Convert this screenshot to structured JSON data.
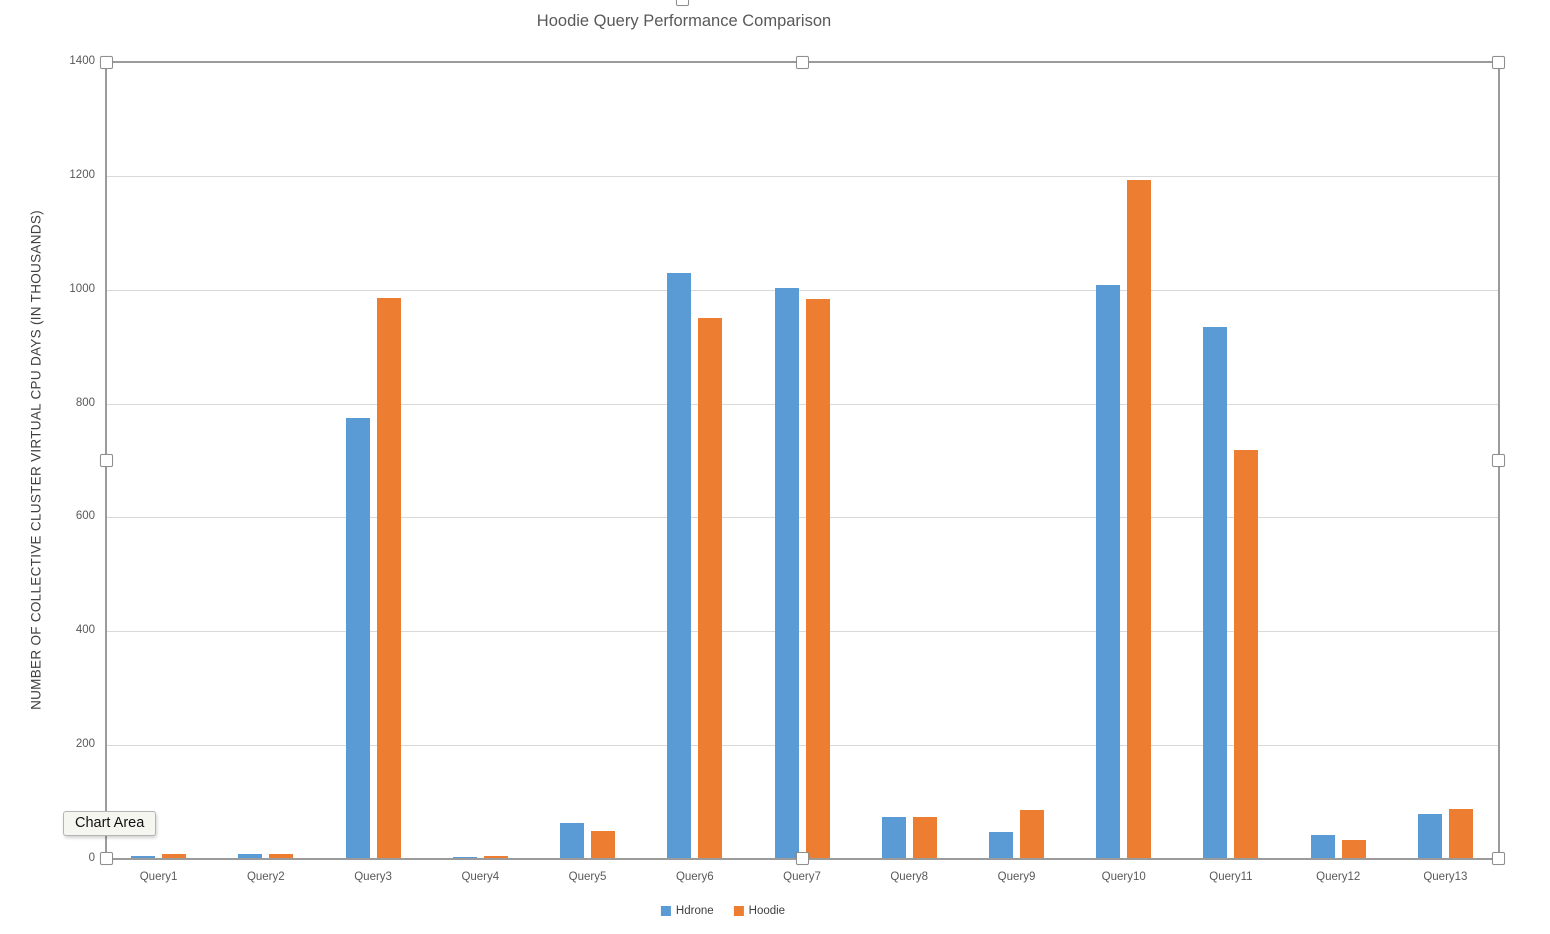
{
  "window": {
    "tooltip": "Chart Area"
  },
  "chart_data": {
    "type": "bar",
    "title": "Hoodie Query Performance Comparison",
    "xlabel": "",
    "ylabel": "NUMBER OF COLLECTIVE CLUSTER VIRTUAL CPU DAYS (IN THOUSANDS)",
    "categories": [
      "Query1",
      "Query2",
      "Query3",
      "Query4",
      "Query5",
      "Query6",
      "Query7",
      "Query8",
      "Query9",
      "Query10",
      "Query11",
      "Query12",
      "Query13"
    ],
    "series": [
      {
        "name": "Hdrone",
        "color": "#5B9BD5",
        "values": [
          5,
          9,
          775,
          3,
          63,
          1030,
          1003,
          73,
          48,
          1008,
          935,
          42,
          79
        ]
      },
      {
        "name": "Hoodie",
        "color": "#ED7D31",
        "values": [
          9,
          8,
          985,
          5,
          50,
          950,
          983,
          74,
          86,
          1192,
          718,
          34,
          88
        ]
      }
    ],
    "ylim": [
      0,
      1400
    ],
    "yticks": [
      0,
      200,
      400,
      600,
      800,
      1000,
      1200,
      1400
    ],
    "grid": true,
    "legend_position": "bottom"
  }
}
